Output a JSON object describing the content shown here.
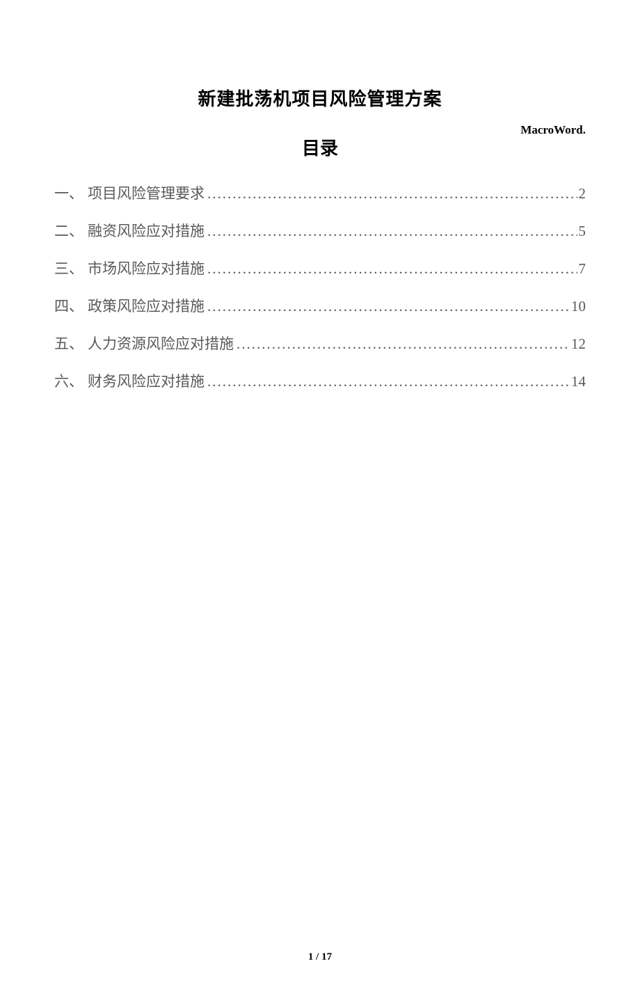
{
  "header": {
    "brand": "MacroWord."
  },
  "title": "新建批荡机项目风险管理方案",
  "subtitle": "目录",
  "toc": {
    "items": [
      {
        "num": "一、",
        "label": "项目风险管理要求",
        "page": "2"
      },
      {
        "num": "二、",
        "label": "融资风险应对措施",
        "page": "5"
      },
      {
        "num": "三、",
        "label": "市场风险应对措施",
        "page": "7"
      },
      {
        "num": "四、",
        "label": "政策风险应对措施",
        "page": "10"
      },
      {
        "num": "五、",
        "label": "人力资源风险应对措施",
        "page": "12"
      },
      {
        "num": "六、",
        "label": "财务风险应对措施",
        "page": "14"
      }
    ]
  },
  "footer": {
    "page": "1 / 17"
  },
  "style": {
    "page_bg": "#ffffff",
    "text_color": "#000000",
    "toc_color": "#595959",
    "title_fontsize": 26,
    "toc_fontsize": 21,
    "brand_fontsize": 17,
    "footer_fontsize": 15
  }
}
